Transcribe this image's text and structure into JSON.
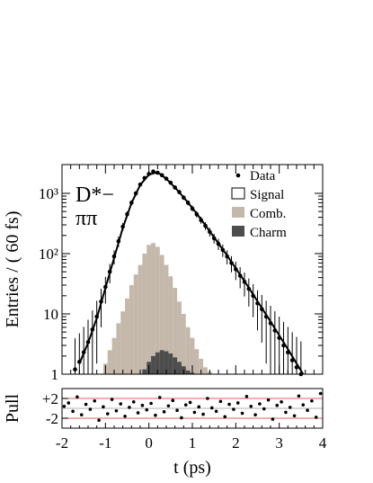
{
  "chart_data": [
    {
      "type": "line",
      "name": "main-panel",
      "xlabel": "t (ps)",
      "ylabel": "Entries / ( 60 fs)",
      "xlim": [
        -2,
        4
      ],
      "ylim": [
        1,
        3000
      ],
      "yscale": "log",
      "ytick_labels": [
        "1",
        "10",
        "10²",
        "10³"
      ],
      "annotation": [
        "D*−",
        "ππ"
      ],
      "legend": {
        "position": "top-right",
        "entries": [
          {
            "label": "Data",
            "marker": "point",
            "color": "#000000"
          },
          {
            "label": "Signal",
            "marker": "open-box",
            "color": "#ffffff"
          },
          {
            "label": "Comb.",
            "marker": "filled-box",
            "color": "#c4b8ab"
          },
          {
            "label": "Charm",
            "marker": "filled-box",
            "color": "#4d4d4d"
          }
        ]
      },
      "series": [
        {
          "name": "Data",
          "kind": "points",
          "color": "#000000",
          "x": [
            -1.7,
            -1.6,
            -1.5,
            -1.4,
            -1.3,
            -1.2,
            -1.1,
            -1.0,
            -0.9,
            -0.8,
            -0.7,
            -0.6,
            -0.5,
            -0.4,
            -0.3,
            -0.2,
            -0.1,
            0.0,
            0.1,
            0.2,
            0.3,
            0.4,
            0.5,
            0.6,
            0.7,
            0.8,
            0.9,
            1.0,
            1.1,
            1.2,
            1.3,
            1.4,
            1.5,
            1.6,
            1.7,
            1.8,
            1.9,
            2.0,
            2.1,
            2.2,
            2.3,
            2.4,
            2.5,
            2.6,
            2.7,
            2.8,
            2.9,
            3.0,
            3.1,
            3.2,
            3.3,
            3.4,
            3.5
          ],
          "y": [
            1.2,
            1.6,
            2.3,
            3.4,
            5.5,
            9,
            16,
            28,
            50,
            90,
            160,
            280,
            450,
            700,
            1000,
            1400,
            1800,
            2100,
            2300,
            2200,
            2000,
            1750,
            1500,
            1250,
            1050,
            850,
            700,
            560,
            450,
            360,
            290,
            230,
            180,
            145,
            115,
            90,
            70,
            55,
            43,
            34,
            26,
            20,
            15,
            12,
            9,
            7,
            5.3,
            4,
            3,
            2.3,
            1.7,
            1.3,
            1.0
          ]
        },
        {
          "name": "Signal",
          "kind": "line",
          "color": "#000000",
          "x": [
            -1.6,
            -1.4,
            -1.2,
            -1.0,
            -0.8,
            -0.6,
            -0.4,
            -0.2,
            0.0,
            0.2,
            0.4,
            0.6,
            0.8,
            1.0,
            1.2,
            1.4,
            1.6,
            1.8,
            2.0,
            2.2,
            2.4,
            2.6,
            2.8,
            3.0,
            3.2,
            3.4,
            3.55
          ],
          "y": [
            1.5,
            3.3,
            8.5,
            27,
            85,
            270,
            690,
            1380,
            2050,
            2250,
            1750,
            1250,
            860,
            570,
            370,
            235,
            148,
            93,
            57,
            35,
            21,
            12.5,
            7.5,
            4.4,
            2.6,
            1.5,
            1.0
          ]
        },
        {
          "name": "Comb.",
          "kind": "histogram",
          "color": "#c4b8ab",
          "x": [
            -1.0,
            -0.9,
            -0.8,
            -0.7,
            -0.6,
            -0.5,
            -0.4,
            -0.3,
            -0.2,
            -0.1,
            0.0,
            0.1,
            0.2,
            0.3,
            0.4,
            0.5,
            0.6,
            0.7,
            0.8,
            0.9,
            1.0,
            1.1,
            1.2,
            1.3,
            1.4
          ],
          "y": [
            1.5,
            2.5,
            4,
            7,
            11,
            18,
            30,
            45,
            65,
            100,
            140,
            150,
            130,
            95,
            65,
            42,
            27,
            16,
            10,
            6,
            4,
            2.6,
            1.8,
            1.3,
            1.1
          ]
        },
        {
          "name": "Charm",
          "kind": "histogram",
          "color": "#4d4d4d",
          "x": [
            -0.1,
            0.0,
            0.1,
            0.2,
            0.3,
            0.4,
            0.5,
            0.6,
            0.7,
            0.8,
            0.9,
            1.0
          ],
          "y": [
            1.2,
            1.6,
            2.0,
            2.3,
            2.5,
            2.4,
            2.2,
            1.9,
            1.6,
            1.35,
            1.15,
            1.05
          ]
        }
      ]
    },
    {
      "type": "scatter",
      "name": "pull-panel",
      "xlabel": "t (ps)",
      "ylabel": "Pull",
      "xlim": [
        -2,
        4
      ],
      "ylim": [
        -4,
        4
      ],
      "ytick_labels": [
        "+2",
        "-2"
      ],
      "xtick_labels": [
        "-2",
        "-1",
        "0",
        "1",
        "2",
        "3",
        "4"
      ],
      "reference_lines": [
        2,
        -2
      ],
      "reference_line_color": "#e88080",
      "series": [
        {
          "name": "Pull",
          "x": [
            -1.95,
            -1.85,
            -1.75,
            -1.65,
            -1.55,
            -1.45,
            -1.35,
            -1.25,
            -1.15,
            -1.05,
            -0.95,
            -0.85,
            -0.75,
            -0.65,
            -0.55,
            -0.45,
            -0.35,
            -0.25,
            -0.15,
            -0.05,
            0.05,
            0.15,
            0.25,
            0.35,
            0.45,
            0.55,
            0.65,
            0.75,
            0.85,
            0.95,
            1.05,
            1.15,
            1.25,
            1.35,
            1.45,
            1.55,
            1.65,
            1.75,
            1.85,
            1.95,
            2.05,
            2.15,
            2.25,
            2.35,
            2.45,
            2.55,
            2.65,
            2.75,
            2.85,
            2.95,
            3.05,
            3.15,
            3.25,
            3.35,
            3.45,
            3.55,
            3.65,
            3.75,
            3.85,
            3.95
          ],
          "y": [
            0.4,
            1.1,
            -0.6,
            2.3,
            -1.3,
            0.8,
            -0.2,
            1.5,
            -2.4,
            0.3,
            -1.1,
            1.8,
            -0.5,
            0.9,
            -1.6,
            0.2,
            1.3,
            -0.9,
            0.6,
            -0.3,
            1.0,
            -1.4,
            2.2,
            -0.7,
            0.5,
            1.6,
            -0.4,
            -1.9,
            0.7,
            1.2,
            -0.8,
            0.3,
            -1.2,
            2.0,
            0.1,
            -0.6,
            1.4,
            -1.7,
            0.8,
            -0.2,
            1.1,
            -1.0,
            2.4,
            0.4,
            -1.3,
            0.9,
            -0.1,
            1.7,
            -2.2,
            0.6,
            1.3,
            -0.8,
            0.2,
            -1.5,
            2.5,
            0.7,
            -0.4,
            1.5,
            -1.8,
            3.0
          ]
        }
      ]
    }
  ]
}
